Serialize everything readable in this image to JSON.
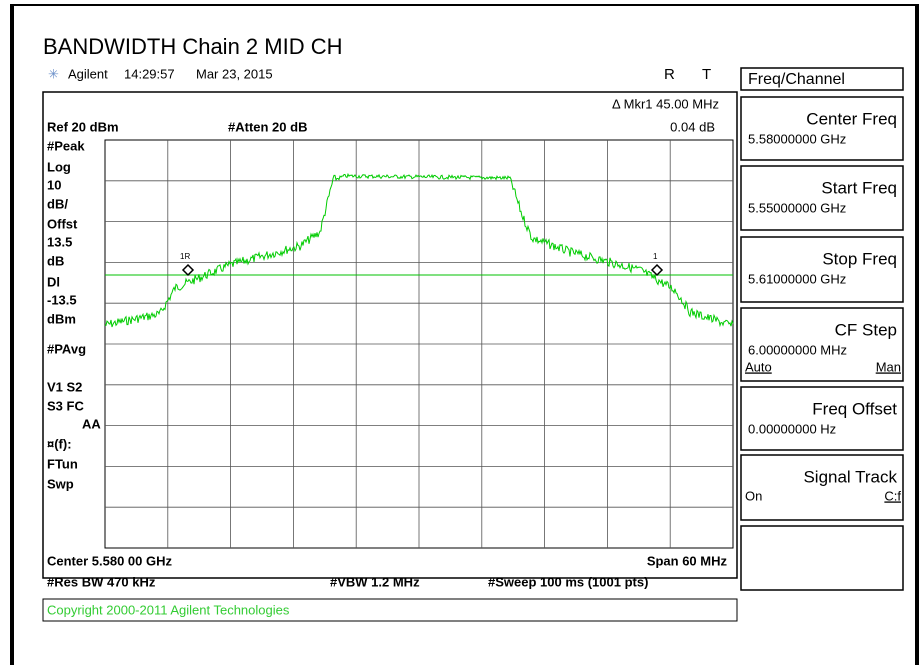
{
  "title": "BANDWIDTH Chain 2 MID CH",
  "header": {
    "brand": "Agilent",
    "time": "14:29:57",
    "date": "Mar 23, 2015",
    "flag_r": "R",
    "flag_t": "T"
  },
  "screen": {
    "marker": "Δ Mkr1  45.00 MHz",
    "marker_delta": "0.04 dB",
    "ref": "Ref 20 dBm",
    "atten": "#Atten 20 dB",
    "left_labels": [
      "#Peak",
      "Log",
      "10",
      "dB/",
      "Offst",
      "13.5",
      "dB",
      "Dl",
      "-13.5",
      "dBm",
      "#PAvg",
      "V1  S2",
      "S3  FC",
      "AA",
      "¤(f):",
      "FTun",
      "Swp"
    ],
    "marker_labels": [
      "1R",
      "1"
    ],
    "center": "Center 5.580 00 GHz",
    "span": "Span 60 MHz",
    "rbw": "#Res BW 470 kHz",
    "vbw": "#VBW 1.2 MHz",
    "sweep": "#Sweep 100 ms (1001 pts)",
    "copyright": "Copyright 2000-2011 Agilent Technologies"
  },
  "menu": {
    "title": "Freq/Channel",
    "buttons": [
      {
        "label": "Center Freq",
        "value": "5.58000000 GHz"
      },
      {
        "label": "Start Freq",
        "value": "5.55000000 GHz"
      },
      {
        "label": "Stop Freq",
        "value": "5.61000000 GHz"
      },
      {
        "label": "CF Step",
        "value": "6.00000000 MHz",
        "left": "Auto",
        "right": "Man"
      },
      {
        "label": "Freq Offset",
        "value": "0.00000000  Hz"
      },
      {
        "label": "Signal Track",
        "left": "On",
        "right": "C:f"
      }
    ]
  }
}
